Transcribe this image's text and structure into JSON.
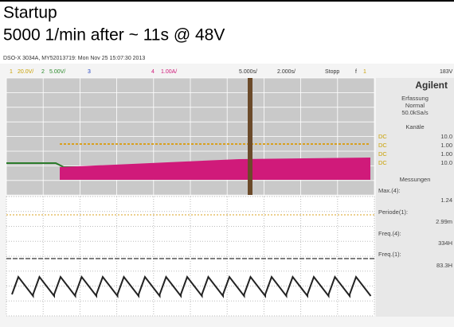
{
  "header": {
    "title": "Startup",
    "subtitle": "5000 1/min after ~ 11s @ 48V"
  },
  "scope": {
    "info": "DSO-X 3034A, MY52013719: Mon Nov 25 15:07:30 2013",
    "status_bar": [
      "1",
      "20.0V/",
      "2",
      "5.00V/",
      "3",
      "4",
      "1.00A/",
      "5.000s/",
      "2.000s/",
      "Stopp",
      "f",
      "1",
      "183V"
    ],
    "brand": "Agilent",
    "panel": [
      "Erfassung",
      "Normal",
      "50.0kSa/s",
      "Kanäle",
      "DC",
      "10.0",
      "DC",
      "1.00",
      "DC",
      "1.00",
      "DC",
      "10.0",
      "Messungen",
      "Max.(4):",
      "1.24",
      "Periode(1):",
      "2.99m",
      "Freq.(4):",
      "334H",
      "Freq.(1):",
      "83.3H"
    ]
  }
}
